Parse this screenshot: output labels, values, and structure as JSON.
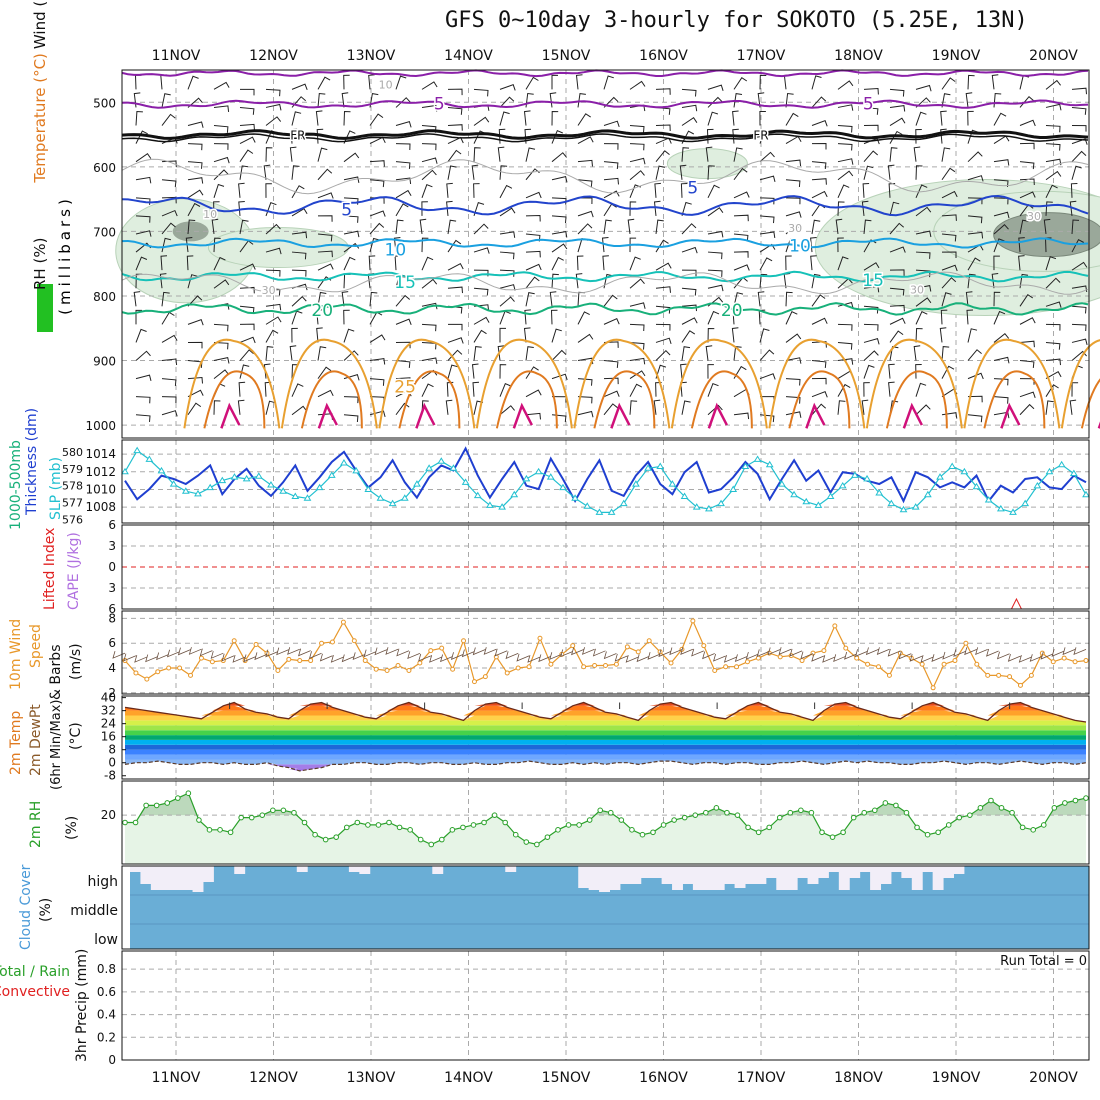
{
  "title": "GFS 0~10day 3-hourly for SOKOTO (5.25E, 13N)",
  "colors": {
    "grid": "#aaaaaa",
    "purple": "#8a1fa8",
    "black": "#111111",
    "blue5": "#2244cc",
    "blue10": "#1aa0e0",
    "cyan15": "#16c1b8",
    "green20": "#18b07a",
    "orange": "#e8a030",
    "darkorange": "#e07a20",
    "magenta": "#d0107a",
    "thickness": "#1f3fd0",
    "slp": "#22c0d0",
    "wind10m": "#e8982a",
    "rh2m": "#2aa02a",
    "rhfill": "#e6f4e6",
    "cloud": "#6aaed6",
    "cloudclear": "#f2eef8",
    "red": "#e02020"
  },
  "chart_data": {
    "type": "meteogram",
    "dates": [
      "11NOV",
      "12NOV",
      "13NOV",
      "14NOV",
      "15NOV",
      "16NOV",
      "17NOV",
      "18NOV",
      "19NOV",
      "20NOV"
    ],
    "panels": [
      {
        "id": "upper",
        "ylabel_parts": [
          "Wind (m/s)",
          "Temperature (°C)",
          "RH (%)",
          "(millibars)"
        ],
        "yticks": [
          500,
          600,
          700,
          800,
          900,
          1000
        ],
        "ylim": [
          450,
          1020
        ],
        "contour_labels": [
          {
            "text": "5",
            "day": 2.7,
            "p": 502,
            "color": "purple"
          },
          {
            "text": "5",
            "day": 7.1,
            "p": 502,
            "color": "purple"
          },
          {
            "text": "FR",
            "day": 1.25,
            "p": 548,
            "color": "black"
          },
          {
            "text": "FR",
            "day": 6.0,
            "p": 548,
            "color": "black"
          },
          {
            "text": "5",
            "day": 1.75,
            "p": 666,
            "color": "blue5"
          },
          {
            "text": "5",
            "day": 5.3,
            "p": 632,
            "color": "blue5"
          },
          {
            "text": "10",
            "day": 2.25,
            "p": 728,
            "color": "blue10"
          },
          {
            "text": "10",
            "day": 6.4,
            "p": 722,
            "color": "blue10"
          },
          {
            "text": "15",
            "day": 2.35,
            "p": 778,
            "color": "cyan15"
          },
          {
            "text": "15",
            "day": 7.15,
            "p": 775,
            "color": "cyan15"
          },
          {
            "text": "20",
            "day": 1.5,
            "p": 822,
            "color": "green20"
          },
          {
            "text": "20",
            "day": 5.7,
            "p": 822,
            "color": "green20"
          },
          {
            "text": "25",
            "day": 2.35,
            "p": 940,
            "color": "orange"
          },
          {
            "text": "10",
            "day": 2.15,
            "p": 469,
            "color": "grid"
          },
          {
            "text": "10",
            "day": 0.35,
            "p": 670,
            "color": "grid"
          },
          {
            "text": "30",
            "day": 0.95,
            "p": 788,
            "color": "grid"
          },
          {
            "text": "30",
            "day": 6.35,
            "p": 692,
            "color": "grid"
          },
          {
            "text": "30",
            "day": 7.6,
            "p": 787,
            "color": "grid"
          },
          {
            "text": "30",
            "day": 8.8,
            "p": 673,
            "color": "grid"
          }
        ]
      },
      {
        "id": "thickness_slp",
        "ylabel_parts": [
          "1000-500mb",
          "Thickness (dm)",
          "SLP (mb)"
        ],
        "thickness_ticks": [
          576,
          577,
          578,
          579,
          580
        ],
        "slp_ticks": [
          1008,
          1010,
          1012,
          1014
        ],
        "thickness_ylim": [
          575.8,
          580.7
        ],
        "slp_ylim": [
          1006.2,
          1015.6
        ],
        "thickness": [
          578.3,
          577.2,
          577.8,
          578.6,
          578.4,
          578.1,
          578.6,
          579.2,
          577.5,
          578.4,
          579.0,
          578.0,
          577.4,
          578.2,
          579.2,
          577.7,
          578.5,
          579.4,
          580.0,
          578.9,
          577.9,
          578.5,
          579.5,
          578.2,
          577.3,
          578.5,
          579.2,
          578.9,
          580.2,
          578.6,
          577.3,
          578.4,
          579.4,
          578.0,
          577.8,
          579.6,
          578.4,
          577.1,
          578.4,
          579.5,
          577.7,
          577.4,
          578.6,
          579.4,
          578.1,
          577.5,
          578.8,
          579.4,
          577.6,
          577.8,
          578.5,
          579.4,
          578.7,
          577.2,
          578.4,
          579.5,
          578.3,
          578.9,
          577.6,
          578.8,
          578.7,
          578.3,
          578.1,
          578.5,
          577.1,
          578.8,
          578.5,
          577.9,
          578.2,
          577.9,
          578.6,
          577.1,
          578.0,
          577.6,
          578.4,
          578.5,
          577.9,
          577.8,
          578.6,
          578.2
        ],
        "slp": [
          1012.0,
          1014.4,
          1013.4,
          1012.1,
          1010.6,
          1009.8,
          1009.5,
          1010.2,
          1011.0,
          1011.4,
          1011.2,
          1011.5,
          1010.5,
          1009.8,
          1009.2,
          1009.0,
          1010.2,
          1011.6,
          1013.0,
          1012.1,
          1010.0,
          1009.0,
          1008.4,
          1009.0,
          1010.6,
          1012.4,
          1013.2,
          1012.4,
          1010.8,
          1009.3,
          1008.2,
          1008.0,
          1009.4,
          1011.2,
          1012.0,
          1011.4,
          1010.2,
          1009.0,
          1008.1,
          1007.4,
          1007.4,
          1008.4,
          1010.6,
          1012.4,
          1012.6,
          1010.6,
          1009.2,
          1008.0,
          1007.8,
          1008.4,
          1010.0,
          1012.6,
          1013.4,
          1012.8,
          1010.6,
          1009.4,
          1008.6,
          1008.2,
          1009.2,
          1010.4,
          1011.6,
          1011.2,
          1009.6,
          1008.4,
          1007.7,
          1008.0,
          1009.4,
          1011.4,
          1012.6,
          1012.0,
          1010.3,
          1008.8,
          1007.8,
          1007.4,
          1008.4,
          1010.4,
          1012.0,
          1012.8,
          1011.8,
          1009.4
        ]
      },
      {
        "id": "cape_li",
        "ylabel_parts": [
          "CAPE (J/kg)",
          "Lifted Index"
        ],
        "li_ticks": [
          -6,
          -3,
          0,
          3,
          6
        ],
        "li_ylim": [
          -6,
          6
        ],
        "li_zero_line": 0,
        "cape_spike_day": 8.62
      },
      {
        "id": "wind10m",
        "ylabel_parts": [
          "Speed",
          "& Barbs",
          "10m Wind",
          "(m/s)"
        ],
        "yticks": [
          2,
          4,
          6,
          8
        ],
        "ylim": [
          1.9,
          8.6
        ],
        "speed": [
          4.6,
          3.6,
          3.1,
          3.7,
          4.0,
          4.0,
          3.4,
          4.8,
          4.5,
          4.6,
          6.2,
          4.6,
          5.9,
          5.2,
          3.8,
          4.7,
          4.6,
          4.6,
          6.0,
          6.1,
          7.7,
          6.2,
          4.6,
          3.9,
          3.8,
          4.2,
          3.8,
          4.4,
          5.4,
          5.6,
          3.9,
          6.2,
          2.9,
          3.3,
          4.9,
          3.6,
          4.0,
          4.1,
          6.4,
          4.3,
          5.1,
          5.8,
          4.1,
          4.2,
          4.2,
          4.3,
          5.7,
          5.3,
          6.2,
          5.3,
          4.4,
          5.5,
          7.8,
          5.8,
          3.8,
          4.1,
          4.1,
          4.5,
          4.8,
          5.2,
          4.9,
          5.0,
          4.6,
          5.2,
          5.4,
          7.4,
          5.6,
          4.8,
          4.3,
          4.1,
          3.4,
          5.2,
          4.8,
          4.3,
          2.4,
          4.3,
          4.6,
          6.0,
          4.3,
          3.4,
          3.4,
          3.3,
          2.6,
          3.4,
          5.2,
          4.5,
          4.8,
          4.5,
          4.6
        ]
      },
      {
        "id": "temp2m",
        "ylabel_parts": [
          "2m Temp",
          "2m DewPt",
          "(6hr Min/Max)",
          "(°C)"
        ],
        "yticks": [
          -8,
          0,
          8,
          16,
          24,
          32,
          40
        ],
        "ylim": [
          -10,
          41
        ],
        "temp": [
          34,
          33,
          32,
          31,
          30,
          29,
          28,
          27,
          31,
          35,
          37,
          33,
          31,
          30,
          28,
          27,
          32,
          36,
          37,
          34,
          32,
          30,
          28,
          27,
          31,
          35,
          37,
          34,
          31,
          30,
          28,
          26,
          32,
          36,
          37,
          34,
          32,
          30,
          28,
          27,
          31,
          35,
          37,
          34,
          31,
          30,
          28,
          26,
          32,
          36,
          37,
          34,
          32,
          30,
          28,
          27,
          31,
          35,
          37,
          34,
          31,
          30,
          28,
          26,
          32,
          36,
          37,
          34,
          32,
          30,
          28,
          27,
          31,
          35,
          37,
          34,
          31,
          30,
          28,
          26,
          32,
          36,
          37,
          34,
          32,
          30,
          28,
          26,
          25
        ],
        "dewpt": [
          -1,
          0,
          0,
          1,
          0,
          -1,
          -1,
          0,
          0,
          -1,
          0,
          -1,
          -1,
          0,
          -2,
          -3,
          -5,
          -4,
          -3,
          -1,
          -1,
          0,
          0,
          -1,
          -1,
          0,
          0,
          -1,
          0,
          0,
          -1,
          -1,
          0,
          -1,
          -1,
          0,
          0,
          1,
          0,
          -1,
          -1,
          0,
          -1,
          0,
          -1,
          0,
          0,
          -1,
          0,
          1,
          1,
          0,
          -1,
          0,
          0,
          -1,
          0,
          0,
          -1,
          -1,
          0,
          0,
          1,
          0,
          -1,
          0,
          1,
          0,
          1,
          0,
          0,
          -1,
          -1,
          0,
          0,
          1,
          0,
          -1,
          0,
          0,
          -1,
          0,
          1,
          0,
          -1,
          0,
          0,
          -1,
          0
        ],
        "color_bands": [
          "#8c52e8",
          "#a57de8",
          "#8ab7f5",
          "#6ea7ff",
          "#3b82ff",
          "#1e66d8",
          "#00b0f0",
          "#00a870",
          "#46d24a",
          "#9ee54a",
          "#d6f04a",
          "#ffd24a",
          "#ffa22a",
          "#ff7a1a",
          "#e84a1a",
          "#c82010",
          "#901010"
        ]
      },
      {
        "id": "rh2m",
        "ylabel_parts": [
          "2m RH",
          "(%)"
        ],
        "yticks": [
          20
        ],
        "ylim": [
          0,
          34
        ],
        "rh": [
          17,
          17,
          24,
          24,
          25,
          27,
          29,
          18,
          14,
          14,
          13,
          19,
          19,
          20,
          22,
          22,
          21,
          17,
          12,
          10,
          11,
          15,
          17,
          16,
          16,
          17,
          15,
          14,
          10,
          8,
          10,
          14,
          15,
          16,
          17,
          20,
          17,
          12,
          9,
          8,
          11,
          14,
          16,
          16,
          18,
          22,
          21,
          18,
          14,
          12,
          13,
          16,
          18,
          19,
          20,
          21,
          23,
          21,
          20,
          15,
          13,
          15,
          19,
          21,
          22,
          21,
          13,
          11,
          13,
          19,
          21,
          22,
          25,
          24,
          21,
          15,
          12,
          13,
          16,
          19,
          20,
          23,
          26,
          23,
          21,
          15,
          14,
          16,
          23,
          25,
          26,
          27
        ],
        "fill_above": 20
      },
      {
        "id": "cloud",
        "ylabel_parts": [
          "Cloud Cover",
          "(%)"
        ],
        "levels": [
          "high",
          "middle",
          "low"
        ],
        "high_clear": [
          15,
          45,
          60,
          60,
          60,
          60,
          65,
          40,
          5,
          5,
          20,
          5,
          5,
          5,
          5,
          5,
          15,
          5,
          5,
          5,
          5,
          15,
          20,
          5,
          5,
          5,
          5,
          5,
          5,
          20,
          5,
          5,
          5,
          5,
          5,
          5,
          15,
          5,
          5,
          5,
          5,
          5,
          5,
          55,
          60,
          65,
          60,
          45,
          45,
          30,
          30,
          45,
          60,
          45,
          60,
          60,
          60,
          45,
          55,
          45,
          45,
          30,
          60,
          60,
          30,
          45,
          30,
          15,
          60,
          30,
          15,
          60,
          45,
          15,
          30,
          60,
          15,
          60,
          30,
          20,
          5,
          5,
          5,
          5,
          5,
          5,
          5,
          5,
          5,
          5,
          5,
          5
        ]
      },
      {
        "id": "precip",
        "ylabel_parts": [
          "3hr Precip (mm)",
          "Total / Rain",
          "Convective"
        ],
        "yticks": [
          0,
          0.2,
          0.4,
          0.6,
          0.8
        ],
        "ylim": [
          0,
          0.96
        ],
        "run_total": "Run Total = 0"
      }
    ]
  }
}
